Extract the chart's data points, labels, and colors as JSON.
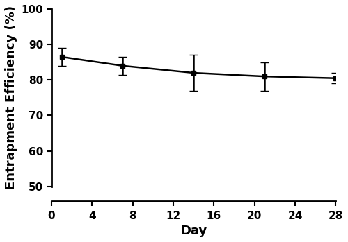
{
  "x": [
    1,
    7,
    14,
    21,
    28
  ],
  "y": [
    86.5,
    84.0,
    82.0,
    81.0,
    80.5
  ],
  "yerr": [
    2.5,
    2.5,
    5.0,
    4.0,
    1.5
  ],
  "xlabel": "Day",
  "ylabel": "Entrapment Efficiency (%)",
  "xlim": [
    0,
    28
  ],
  "ylim": [
    50,
    100
  ],
  "yticks": [
    50,
    60,
    70,
    80,
    90,
    100
  ],
  "xticks": [
    0,
    4,
    8,
    12,
    16,
    20,
    24,
    28
  ],
  "line_color": "black",
  "marker": "s",
  "marker_size": 5,
  "capsize": 4,
  "linewidth": 1.8,
  "background_color": "#ffffff",
  "tick_labelsize": 11,
  "label_fontsize": 13,
  "label_fontweight": "bold",
  "tick_fontweight": "bold"
}
